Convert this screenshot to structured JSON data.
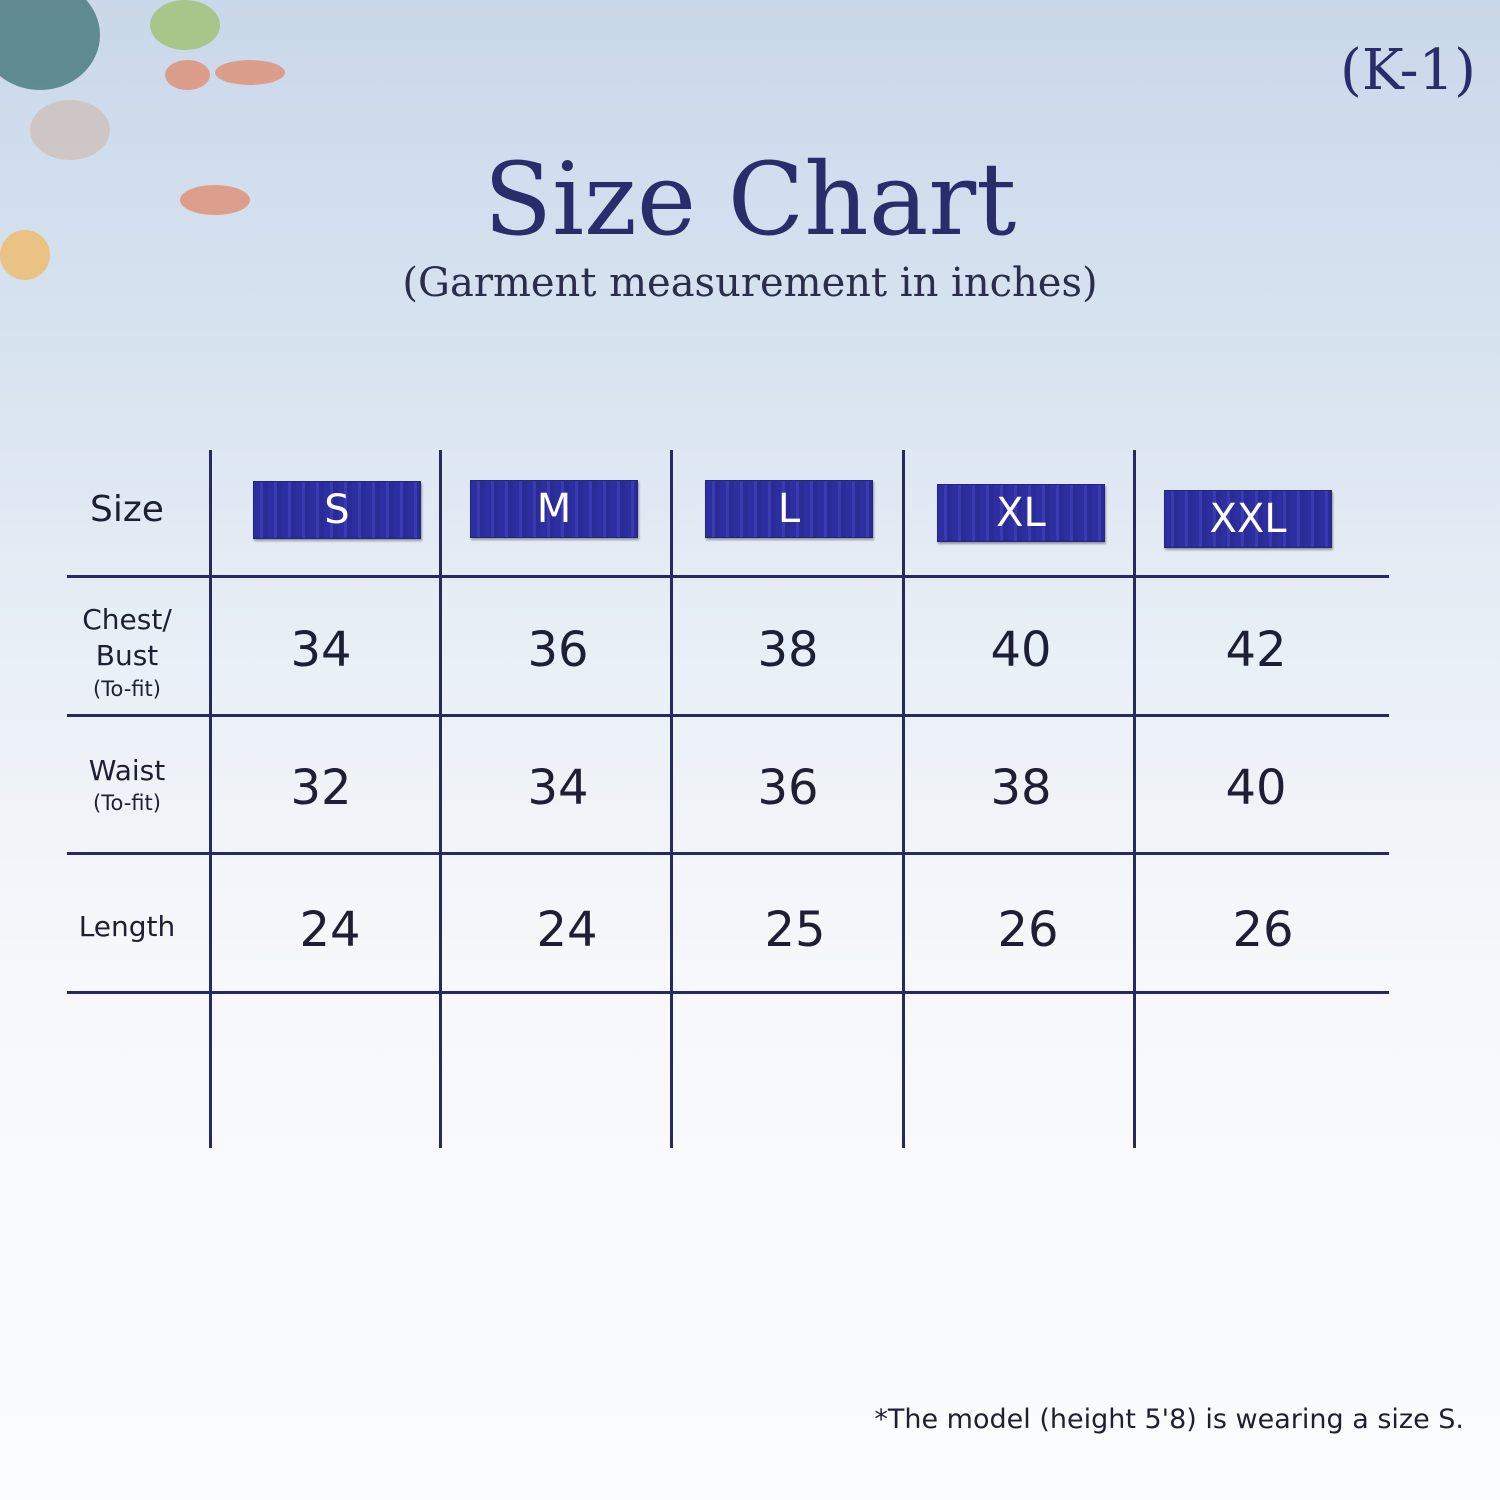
{
  "code": "(K-1)",
  "title": "Size Chart",
  "subtitle": "(Garment measurement in inches)",
  "table": {
    "header_label": "Size",
    "sizes": [
      "S",
      "M",
      "L",
      "XL",
      "XXL"
    ],
    "rows": [
      {
        "label": "Chest/ Bust",
        "sub": "(To-fit)",
        "values": [
          "34",
          "36",
          "38",
          "40",
          "42"
        ]
      },
      {
        "label": "Waist",
        "sub": "(To-fit)",
        "values": [
          "32",
          "34",
          "36",
          "38",
          "40"
        ]
      },
      {
        "label": "Length",
        "sub": "",
        "values": [
          "24",
          "24",
          "25",
          "26",
          "26"
        ]
      }
    ]
  },
  "note": "*The model (height 5'8) is wearing a size S.",
  "colors": {
    "accent": "#2d2ea0",
    "lines": "#262a5e",
    "title": "#2a2d6b"
  }
}
